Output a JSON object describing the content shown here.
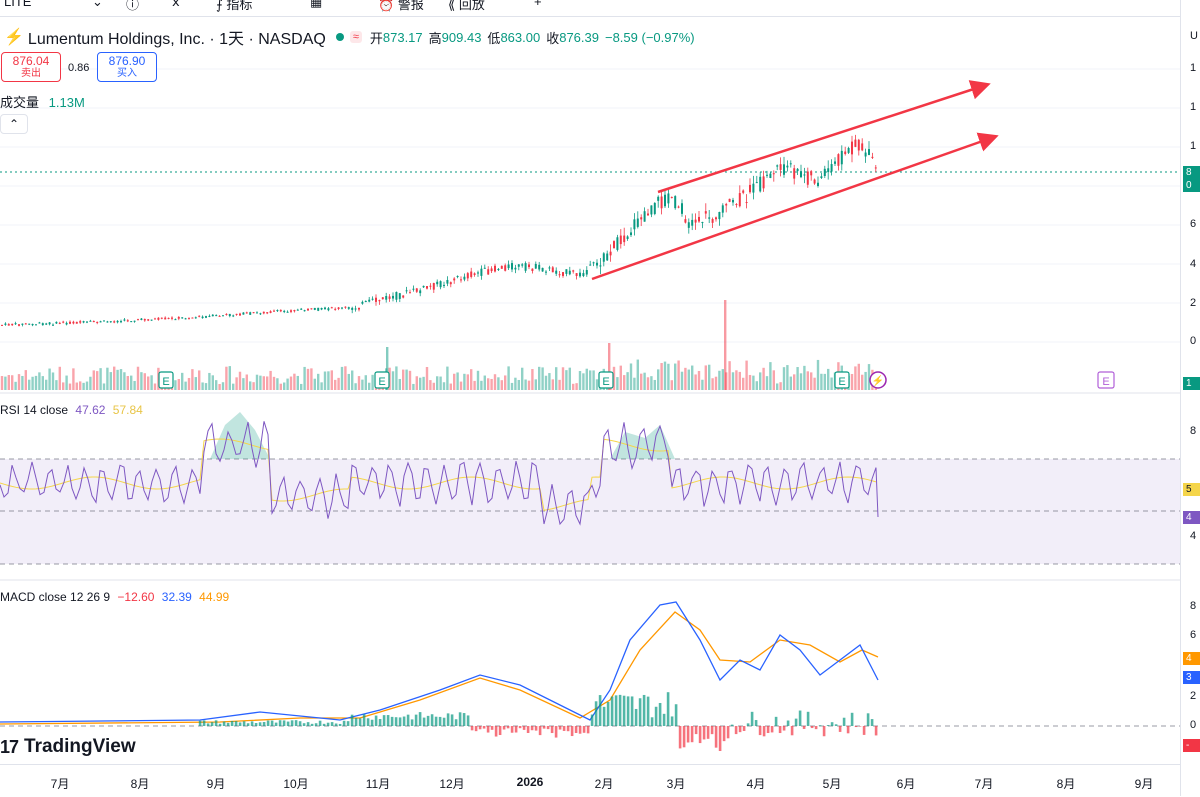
{
  "topbar": {
    "items": [
      "LITE",
      "⌄",
      "ⓘ",
      "ⅹ",
      "指标",
      "▦",
      "警报",
      "回放",
      "+"
    ]
  },
  "legend": {
    "symbol": "Lumentum Holdings, Inc. · 1天 · NASDAQ",
    "open_label": "开",
    "open": "873.17",
    "high_label": "高",
    "high": "909.43",
    "low_label": "低",
    "low": "863.00",
    "close_label": "收",
    "close": "876.39",
    "change": "−8.59 (−0.97%)"
  },
  "trade": {
    "sell_price": "876.04",
    "sell_label": "卖出",
    "spread": "0.86",
    "buy_price": "876.90",
    "buy_label": "买入"
  },
  "volume": {
    "label": "成交量",
    "value": "1.13M"
  },
  "rsi": {
    "label": "RSI 14 close",
    "value": "47.62",
    "ma": "57.84"
  },
  "macd": {
    "label": "MACD close 12 26 9",
    "hist": "−12.60",
    "macd": "32.39",
    "signal": "44.99"
  },
  "branding": {
    "logo": "17",
    "name": "TradingView"
  },
  "time_axis": [
    "7月",
    "8月",
    "9月",
    "10月",
    "11月",
    "12月",
    "2026",
    "2月",
    "3月",
    "4月",
    "5月",
    "6月",
    "7月",
    "8月",
    "9月"
  ],
  "price_axis": [
    "1",
    "1",
    "1",
    "8",
    "0",
    "6",
    "4",
    "2",
    "0"
  ],
  "rsi_axis": [
    "8",
    "5",
    "4",
    "4"
  ],
  "macd_axis": [
    "8",
    "6",
    "4",
    "3",
    "2",
    "0",
    "-"
  ],
  "colors": {
    "up": "#089981",
    "down": "#f23645",
    "rsi": "#7e57c2",
    "macd": "#2962ff",
    "signal": "#ff9800",
    "trend": "#f23645"
  },
  "icons": [
    "earnings-icon",
    "dividend-icon",
    "collapse-icon"
  ]
}
